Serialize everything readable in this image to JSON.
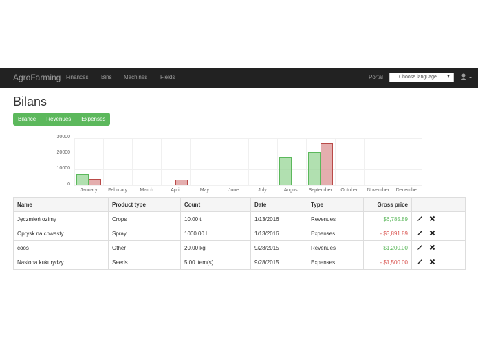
{
  "navbar": {
    "brand": "AgroFarming",
    "links": [
      "Finances",
      "Bins",
      "Machines",
      "Fields"
    ],
    "portal": "Portal",
    "language_select": {
      "selected": "Choose language"
    },
    "user_icon": "user-icon"
  },
  "page": {
    "title": "Bilans",
    "tabs": [
      "Bilance",
      "Revenues",
      "Expenses"
    ]
  },
  "chart_data": {
    "type": "bar",
    "categories": [
      "January",
      "February",
      "March",
      "April",
      "May",
      "June",
      "July",
      "August",
      "September",
      "October",
      "November",
      "December"
    ],
    "series": [
      {
        "name": "Revenues",
        "color": "#5cb85c",
        "values": [
          6785.89,
          0,
          0,
          0,
          0,
          0,
          0,
          17800,
          21000,
          0,
          0,
          0
        ]
      },
      {
        "name": "Expenses",
        "color": "#b94a48",
        "values": [
          3891.89,
          0,
          0,
          3500,
          0,
          0,
          0,
          0,
          26500,
          0,
          0,
          0
        ]
      }
    ],
    "yticks": [
      "30000",
      "20000",
      "10000",
      "0"
    ],
    "ylim": [
      0,
      30000
    ],
    "grid": true
  },
  "table": {
    "headers": [
      "Name",
      "Product type",
      "Count",
      "Date",
      "Type",
      "Gross price",
      ""
    ],
    "rows": [
      {
        "name": "Jęczmień ozimy",
        "product_type": "Crops",
        "count": "10.00 t",
        "date": "1/13/2016",
        "type": "Revenues",
        "price": "$6,785.89",
        "sign": "pos"
      },
      {
        "name": "Oprysk na chwasty",
        "product_type": "Spray",
        "count": "1000.00 l",
        "date": "1/13/2016",
        "type": "Expenses",
        "price": "- $3,891.89",
        "sign": "neg"
      },
      {
        "name": "cooś",
        "product_type": "Other",
        "count": "20.00 kg",
        "date": "9/28/2015",
        "type": "Revenues",
        "price": "$1,200.00",
        "sign": "pos"
      },
      {
        "name": "Nasiona kukurydzy",
        "product_type": "Seeds",
        "count": "5.00 item(s)",
        "date": "9/28/2015",
        "type": "Expenses",
        "price": "- $1,500.00",
        "sign": "neg"
      }
    ],
    "row_actions": [
      "edit-icon",
      "delete-icon"
    ]
  }
}
